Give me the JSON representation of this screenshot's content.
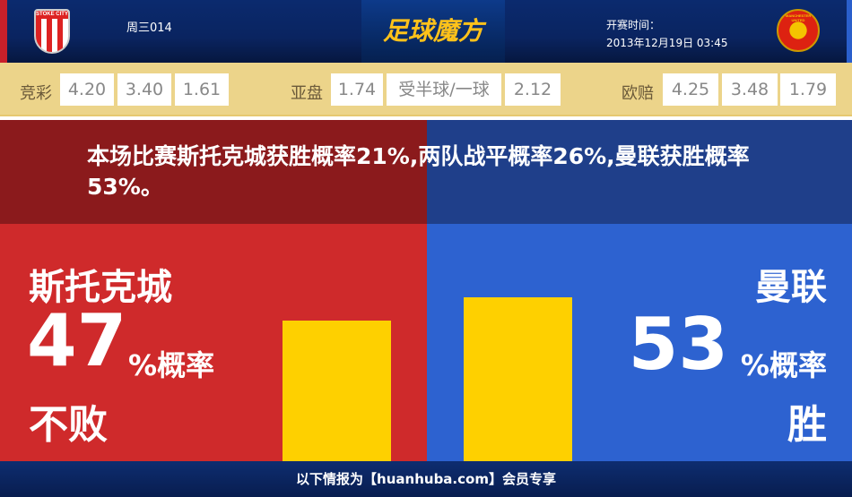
{
  "header": {
    "match_no": "周三014",
    "brand": "足球魔方",
    "kickoff_label": "开赛时间：",
    "kickoff_time": "2013年12月19日 03:45",
    "home_logo_text": "STOKE CITY",
    "away_logo_text": "MANCHESTER UNITED"
  },
  "odds": {
    "jc_label": "竞彩",
    "jc": [
      "4.20",
      "3.40",
      "1.61"
    ],
    "asian_label": "亚盘",
    "asian": [
      "1.74",
      "受半球/一球",
      "2.12"
    ],
    "euro_label": "欧赔",
    "euro": [
      "4.25",
      "3.48",
      "1.79"
    ]
  },
  "summary": "本场比赛斯托克城获胜概率21%,两队战平概率26%,曼联获胜概率53%。",
  "home": {
    "name": "斯托克城",
    "percent": "47",
    "unit": "%概率",
    "outcome": "不败",
    "value": 47
  },
  "away": {
    "name": "曼联",
    "percent": "53",
    "unit": "%概率",
    "outcome": "胜",
    "value": 53
  },
  "colors": {
    "home": "#cf2a2b",
    "away": "#2d62d0",
    "bar": "#fed000"
  },
  "footer": "以下情报为【huanhuba.com】会员专享"
}
